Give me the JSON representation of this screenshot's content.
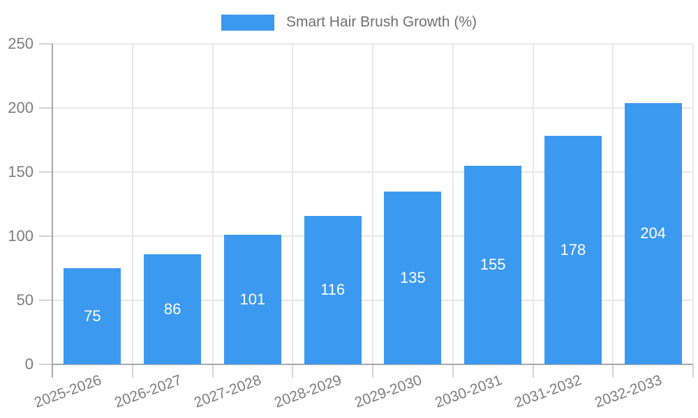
{
  "legend": {
    "label": "Smart Hair Brush Growth (%)"
  },
  "chart_data": {
    "type": "bar",
    "title": "",
    "categories": [
      "2025-2026",
      "2026-2027",
      "2027-2028",
      "2028-2029",
      "2029-2030",
      "2030-2031",
      "2031-2032",
      "2032-2033"
    ],
    "series": [
      {
        "name": "Smart Hair Brush Growth (%)",
        "values": [
          75,
          86,
          101,
          116,
          135,
          155,
          178,
          204
        ]
      }
    ],
    "value_labels_shown": true,
    "xlabel": "",
    "ylabel": "",
    "ylim": [
      0,
      250
    ],
    "yticks": [
      0,
      50,
      100,
      150,
      200,
      250
    ],
    "grid": true,
    "legend_position": "top",
    "colors": {
      "bar": "#3b99ef",
      "value_label": "#ffffff",
      "axis_line": "#a8a8a8",
      "gridline": "#e8e8e8",
      "tick_mark": "#d4d4d4",
      "tick_label": "#7d7d7d",
      "legend_text": "#6f6f6f",
      "background": "#ffffff"
    }
  }
}
